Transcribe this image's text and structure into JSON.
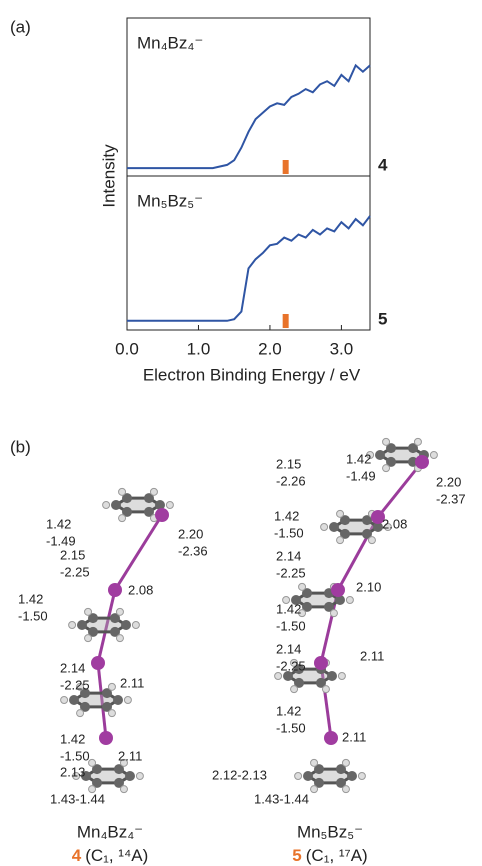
{
  "panel_labels": [
    "(a)",
    "(b)"
  ],
  "chart_data": [
    {
      "type": "line",
      "title": "Mn₄Bz₄⁻",
      "ylabel": "Intensity",
      "label": "4",
      "label_color": "#e8732a",
      "color": "#2f55a4",
      "xlim": [
        0,
        3.4
      ],
      "ylim": [
        0,
        1
      ],
      "marker_x": 2.22,
      "marker_color": "#e8732a",
      "x": [
        0.0,
        0.1,
        0.2,
        0.3,
        0.4,
        0.5,
        0.6,
        0.7,
        0.8,
        0.9,
        1.0,
        1.1,
        1.2,
        1.3,
        1.4,
        1.5,
        1.6,
        1.7,
        1.8,
        1.9,
        2.0,
        2.1,
        2.2,
        2.3,
        2.4,
        2.5,
        2.6,
        2.7,
        2.8,
        2.9,
        3.0,
        3.1,
        3.2,
        3.3,
        3.4
      ],
      "values": [
        0.05,
        0.05,
        0.05,
        0.05,
        0.05,
        0.05,
        0.05,
        0.05,
        0.05,
        0.05,
        0.05,
        0.05,
        0.05,
        0.06,
        0.07,
        0.1,
        0.18,
        0.28,
        0.36,
        0.4,
        0.44,
        0.46,
        0.45,
        0.5,
        0.52,
        0.55,
        0.53,
        0.58,
        0.6,
        0.57,
        0.64,
        0.6,
        0.7,
        0.66,
        0.7
      ]
    },
    {
      "type": "line",
      "title": "Mn₅Bz₅⁻",
      "xlabel": "Electron Binding Energy / eV",
      "label": "5",
      "label_color": "#e8732a",
      "color": "#2f55a4",
      "xlim": [
        0,
        3.4
      ],
      "ylim": [
        0,
        1
      ],
      "marker_x": 2.22,
      "marker_color": "#e8732a",
      "xticks": [
        {
          "value": 0,
          "label": "0.0"
        },
        {
          "value": 1,
          "label": "1.0"
        },
        {
          "value": 2,
          "label": "2.0"
        },
        {
          "value": 3,
          "label": "3.0"
        }
      ],
      "x": [
        0.0,
        0.1,
        0.2,
        0.3,
        0.4,
        0.5,
        0.6,
        0.7,
        0.8,
        0.9,
        1.0,
        1.1,
        1.2,
        1.3,
        1.4,
        1.5,
        1.6,
        1.7,
        1.8,
        1.9,
        2.0,
        2.1,
        2.2,
        2.3,
        2.4,
        2.5,
        2.6,
        2.7,
        2.8,
        2.9,
        3.0,
        3.1,
        3.2,
        3.3,
        3.4
      ],
      "values": [
        0.06,
        0.06,
        0.06,
        0.06,
        0.06,
        0.06,
        0.06,
        0.06,
        0.06,
        0.06,
        0.06,
        0.06,
        0.06,
        0.06,
        0.06,
        0.07,
        0.12,
        0.4,
        0.46,
        0.5,
        0.55,
        0.56,
        0.6,
        0.58,
        0.62,
        0.6,
        0.65,
        0.62,
        0.66,
        0.64,
        0.7,
        0.66,
        0.72,
        0.68,
        0.74
      ]
    }
  ],
  "structures": [
    {
      "formula": "Mn₄Bz₄⁻",
      "number": "4",
      "state": "(C₁, ¹⁴A)",
      "bond_labels": [
        [
          "1.42",
          "-1.49"
        ],
        [
          "2.20",
          "-2.36"
        ],
        [
          "2.15",
          "-2.25"
        ],
        [
          "2.08"
        ],
        [
          "1.42",
          "-1.50"
        ],
        [
          "2.14",
          "-2.25"
        ],
        [
          "2.11"
        ],
        [
          "1.42",
          "-1.50"
        ],
        [
          "2.11"
        ],
        [
          "2.13"
        ],
        [
          "1.43-1.44"
        ]
      ]
    },
    {
      "formula": "Mn₅Bz₅⁻",
      "number": "5",
      "state": "(C₁, ¹⁷A)",
      "bond_labels": [
        [
          "1.42",
          "-1.49"
        ],
        [
          "2.20",
          "-2.37"
        ],
        [
          "2.15",
          "-2.26"
        ],
        [
          "1.42",
          "-1.50"
        ],
        [
          "2.08"
        ],
        [
          "2.14",
          "-2.25"
        ],
        [
          "2.10"
        ],
        [
          "1.42",
          "-1.50"
        ],
        [
          "2.14",
          "-2.25"
        ],
        [
          "2.11"
        ],
        [
          "1.42",
          "-1.50"
        ],
        [
          "2.11"
        ],
        [
          "2.12-2.13"
        ],
        [
          "1.43-1.44"
        ]
      ]
    }
  ]
}
